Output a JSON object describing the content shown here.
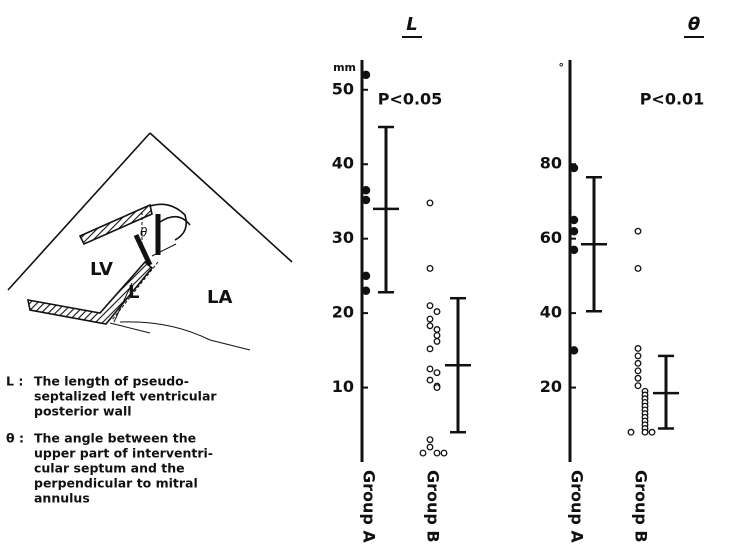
{
  "chart_data": [
    {
      "type": "dotplot",
      "title": "L",
      "ylabel": "mm",
      "annotation": "P<0.05",
      "ylim": [
        0,
        54
      ],
      "yticks": [
        10,
        20,
        30,
        40,
        50
      ],
      "series": [
        {
          "name": "Group A",
          "filled": true,
          "values": [
            52,
            36.5,
            35.2,
            25,
            23
          ],
          "mean": 34,
          "range": [
            22.8,
            45
          ]
        },
        {
          "name": "Group B",
          "filled": false,
          "values": [
            34.8,
            26,
            21,
            20.2,
            19.2,
            18.3,
            17.8,
            17,
            16.2,
            15.2,
            12.5,
            12,
            11,
            10.2,
            10,
            3,
            2,
            1.2,
            1.2,
            1.2
          ],
          "mean": 13,
          "range": [
            4,
            22
          ]
        }
      ]
    },
    {
      "type": "dotplot",
      "title": "θ",
      "ylabel": "°",
      "annotation": "P<0.01",
      "ylim": [
        0,
        108
      ],
      "yticks": [
        20,
        40,
        60,
        80
      ],
      "series": [
        {
          "name": "Group A",
          "filled": true,
          "values": [
            79,
            65,
            62,
            57,
            30
          ],
          "mean": 58.5,
          "range": [
            40.5,
            76.5
          ]
        },
        {
          "name": "Group B",
          "filled": false,
          "values": [
            62,
            52,
            30.5,
            28.5,
            26.5,
            24.5,
            22.5,
            20.5,
            19,
            18,
            17,
            16,
            15,
            14,
            13,
            12,
            11,
            10,
            9,
            8,
            8,
            8
          ],
          "mean": 18.5,
          "range": [
            9,
            28.5
          ]
        }
      ]
    }
  ],
  "diagram": {
    "labels": [
      "LV",
      "LA",
      "L",
      "θ"
    ],
    "notes": [
      {
        "symbol": "L :",
        "lines": [
          "The length of pseudo-",
          "septalized left ventricular",
          "posterior wall"
        ]
      },
      {
        "symbol": "θ :",
        "lines": [
          "The angle between the",
          "upper part of interventri-",
          "cular septum and the",
          "perpendicular to mitral",
          "annulus"
        ]
      }
    ]
  }
}
